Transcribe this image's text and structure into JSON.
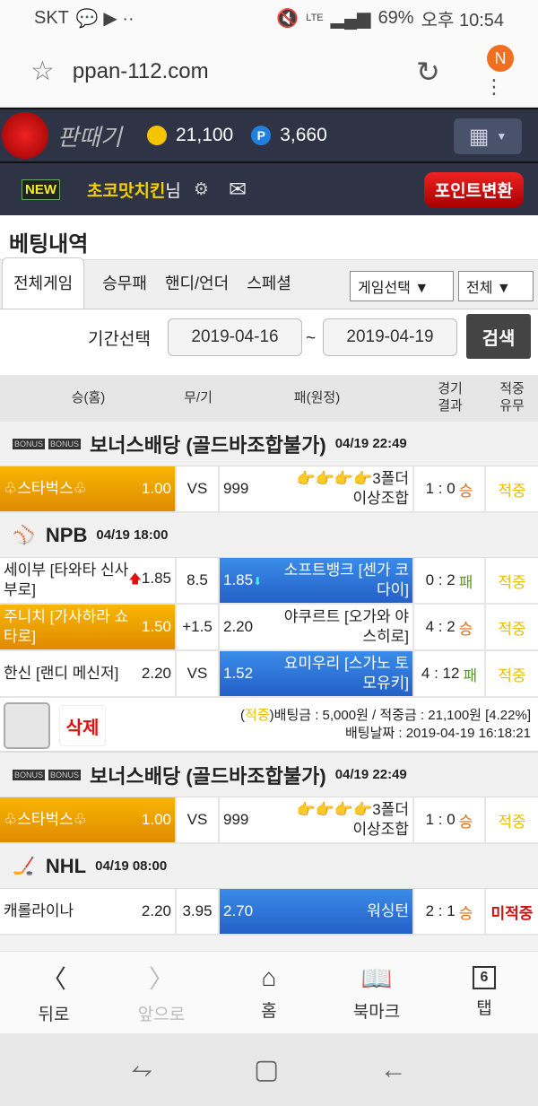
{
  "status": {
    "carrier": "SKT",
    "battery": "69%",
    "time": "오후 10:54",
    "network": "LTE"
  },
  "browser": {
    "url": "ppan-112.com",
    "badge": "N"
  },
  "header": {
    "logo": "판때기",
    "coins": "21,100",
    "points": "3,660",
    "point_icon": "P"
  },
  "user": {
    "new": "NEW",
    "name": "초코맛치킨",
    "suffix": "님",
    "convert": "포인트변환"
  },
  "page_title": "베팅내역",
  "tabs": [
    "전체게임",
    "승무패",
    "핸디/언더",
    "스페셜"
  ],
  "game_select": "게임선택 ▼",
  "all_select": "전체 ▼",
  "period": {
    "label": "기간선택",
    "from": "2019-04-16",
    "sep": "~",
    "to": "2019-04-19",
    "search": "검색"
  },
  "columns": {
    "home": "승(홈)",
    "draw": "무/기",
    "away": "패(원정)",
    "result1": "경기",
    "result2": "결과",
    "hit1": "적중",
    "hit2": "유무"
  },
  "bets": [
    {
      "groups": [
        {
          "icon": "bonus",
          "bonus_tag": "BONUS",
          "name": "보너스배당 (골드바조합불가)",
          "time": "04/19 22:49",
          "rows": [
            {
              "home": "♧스타벅스♧",
              "home_odds": "1.00",
              "draw": "VS",
              "away": "👉👉👉👉3폴더이상조합",
              "away_odds": "999",
              "score": "1 : 0",
              "outcome": "승",
              "selected": "home",
              "hit": "적중"
            }
          ]
        },
        {
          "icon": "baseball",
          "name": "NPB",
          "time": "04/19 18:00",
          "rows": [
            {
              "home": "세이부 [타와타 신사부로]",
              "home_odds": "1.85",
              "home_arrow": "up",
              "draw": "8.5",
              "away": "소프트뱅크 [센가 코다이]",
              "away_odds": "1.85",
              "away_arrow": "down",
              "score": "0 : 2",
              "outcome": "패",
              "selected": "away",
              "hit": "적중"
            },
            {
              "home": "주니치 [가사하라 쇼타로]",
              "home_odds": "1.50",
              "draw": "+1.5",
              "away": "야쿠르트 [오가와 야스히로]",
              "away_odds": "2.20",
              "score": "4 : 2",
              "outcome": "승",
              "selected": "home",
              "hit": "적중"
            },
            {
              "home": "한신 [랜디 메신저]",
              "home_odds": "2.20",
              "draw": "VS",
              "away": "요미우리 [스가노 토모유키]",
              "away_odds": "1.52",
              "score": "4 : 12",
              "outcome": "패",
              "selected": "away",
              "hit": "적중"
            }
          ]
        }
      ],
      "summary": {
        "delete": "삭제",
        "status": "적중",
        "line1": "배팅금 : 5,000원 / 적중금 : 21,100원 [4.22%]",
        "line2": "배팅날짜 : 2019-04-19 16:18:21"
      }
    },
    {
      "groups": [
        {
          "icon": "bonus",
          "bonus_tag": "BONUS",
          "name": "보너스배당 (골드바조합불가)",
          "time": "04/19 22:49",
          "rows": [
            {
              "home": "♧스타벅스♧",
              "home_odds": "1.00",
              "draw": "VS",
              "away": "👉👉👉👉3폴더이상조합",
              "away_odds": "999",
              "score": "1 : 0",
              "outcome": "승",
              "selected": "home",
              "hit": "적중"
            }
          ]
        },
        {
          "icon": "hockey",
          "name": "NHL",
          "time": "04/19 08:00",
          "rows": [
            {
              "home": "캐롤라이나",
              "home_odds": "2.20",
              "draw": "3.95",
              "away": "워싱턴",
              "away_odds": "2.70",
              "score": "2 : 1",
              "outcome": "승",
              "selected": "away",
              "hit": "미적중"
            }
          ]
        }
      ]
    }
  ],
  "bottom_nav": [
    {
      "icon": "back",
      "label": "뒤로"
    },
    {
      "icon": "forward",
      "label": "앞으로"
    },
    {
      "icon": "home",
      "label": "홈"
    },
    {
      "icon": "bookmark",
      "label": "북마크"
    },
    {
      "icon": "tabs",
      "label": "탭",
      "count": "6"
    }
  ]
}
